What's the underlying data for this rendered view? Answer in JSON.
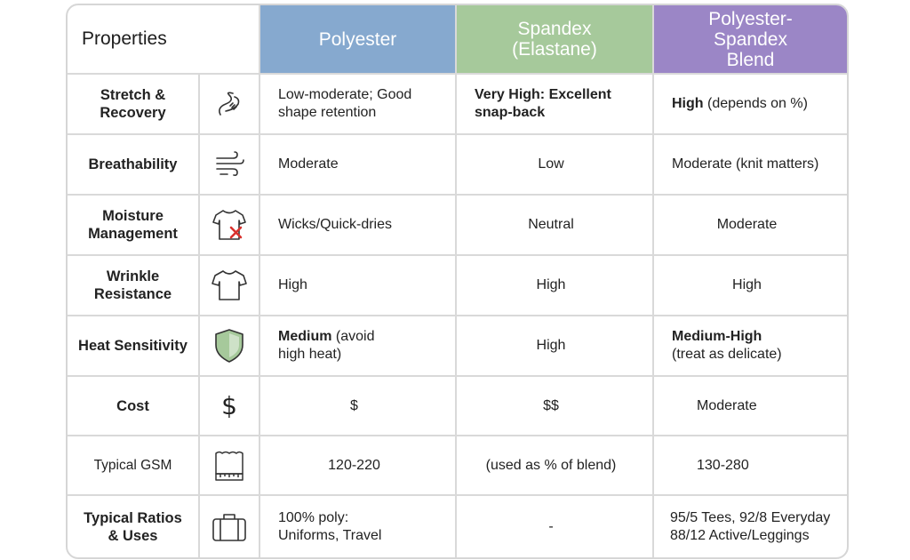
{
  "header": {
    "properties": "Properties",
    "polyester": "Polyester",
    "spandex_line1": "Spandex",
    "spandex_line2": "(Elastane)",
    "blend_line1": "Polyester-",
    "blend_line2": "Spandex",
    "blend_line3": "Blend"
  },
  "colors": {
    "polyester_header": "#86a9cf",
    "spandex_header": "#a6c99b",
    "blend_header": "#9b86c6",
    "shield_fill": "#a6c99b",
    "x_mark": "#d9322e"
  },
  "rows": [
    {
      "label1": "Stretch &",
      "label2": "Recovery",
      "icon": "stretch-icon",
      "poly1": "Low-moderate; Good",
      "poly2": "shape retention",
      "span1": "Very High: Excellent",
      "span2": "snap-back",
      "blend_bold": "High",
      "blend_rest": " (depends on %)"
    },
    {
      "label1": "Breathability",
      "icon": "air-flow-icon",
      "poly": "Moderate",
      "span": "Low",
      "blend": "Moderate (knit matters)"
    },
    {
      "label1": "Moisture",
      "label2": "Management",
      "icon": "tshirt-cross-icon",
      "poly": "Wicks/Quick-dries",
      "span": "Neutral",
      "blend": "Moderate"
    },
    {
      "label1": "Wrinkle",
      "label2": "Resistance",
      "icon": "tshirt-icon",
      "poly": "High",
      "span": "High",
      "blend": "High"
    },
    {
      "label1": "Heat Sensitivity",
      "icon": "shield-icon",
      "poly_bold": "Medium",
      "poly_rest": " (avoid",
      "poly2": "high heat)",
      "span": "High",
      "blend1": "Medium-High",
      "blend2": "(treat as delicate)"
    },
    {
      "label1": "Cost",
      "icon": "dollar-icon",
      "poly": "$",
      "span": "$$",
      "blend": "Moderate"
    },
    {
      "label1": "Typical GSM",
      "icon": "fabric-swatch-icon",
      "poly": "120-220",
      "span": "(used as % of blend)",
      "blend": "130-280"
    },
    {
      "label1": "Typical Ratios",
      "label2": "& Uses",
      "icon": "suitcase-icon",
      "poly1": "100% poly:",
      "poly2": "Uniforms, Travel",
      "span": "-",
      "blend1": "95/5 Tees, 92/8 Everyday",
      "blend2": "88/12 Active/Leggings"
    }
  ]
}
